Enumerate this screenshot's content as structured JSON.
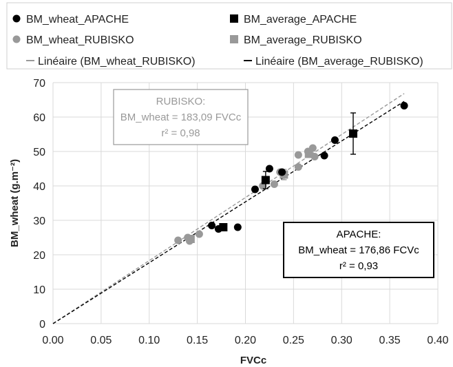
{
  "chart_data": {
    "type": "scatter",
    "xlabel": "FVCc",
    "ylabel": "BM_wheat (g.m⁻²)",
    "xlim": [
      0,
      0.4
    ],
    "ylim": [
      0,
      70
    ],
    "x_ticks": [
      "0.00",
      "0.05",
      "0.10",
      "0.15",
      "0.20",
      "0.25",
      "0.30",
      "0.35",
      "0.40"
    ],
    "y_ticks": [
      "0",
      "10",
      "20",
      "30",
      "40",
      "50",
      "60",
      "70"
    ],
    "grid": true,
    "legend_placement": "top",
    "series": [
      {
        "name": "BM_wheat_APACHE",
        "marker": "circle",
        "color": "#000000",
        "points": [
          [
            0.165,
            28.5
          ],
          [
            0.172,
            27.5
          ],
          [
            0.192,
            28.0
          ],
          [
            0.21,
            39.0
          ],
          [
            0.225,
            45.0
          ],
          [
            0.238,
            44.0
          ],
          [
            0.282,
            48.8
          ],
          [
            0.293,
            53.3
          ],
          [
            0.365,
            63.3
          ]
        ]
      },
      {
        "name": "BM_average_APACHE",
        "marker": "square",
        "color": "#000000",
        "points": [
          [
            0.177,
            28.0
          ],
          [
            0.221,
            41.7
          ],
          [
            0.312,
            55.2
          ]
        ],
        "error": [
          0,
          2.5,
          6.0
        ]
      },
      {
        "name": "BM_wheat_RUBISKO",
        "marker": "circle",
        "color": "#999999",
        "points": [
          [
            0.13,
            24.2
          ],
          [
            0.14,
            25.0
          ],
          [
            0.142,
            24.0
          ],
          [
            0.152,
            26.0
          ],
          [
            0.218,
            40.0
          ],
          [
            0.23,
            40.5
          ],
          [
            0.236,
            44.0
          ],
          [
            0.255,
            45.5
          ],
          [
            0.255,
            49.0
          ],
          [
            0.265,
            50.0
          ],
          [
            0.27,
            51.0
          ],
          [
            0.272,
            48.5
          ]
        ]
      },
      {
        "name": "BM_average_RUBISKO",
        "marker": "square",
        "color": "#999999",
        "points": [
          [
            0.143,
            24.6
          ],
          [
            0.24,
            43.3
          ],
          [
            0.266,
            49.3
          ]
        ],
        "error": [
          0.8,
          1.5,
          1.0
        ]
      },
      {
        "name": "Linéaire (BM_wheat_RUBISKO)",
        "type": "line",
        "dash": "dashed",
        "color": "#999999",
        "slope": 183.09
      },
      {
        "name": "Linéaire (BM_average_RUBISKO)",
        "type": "line",
        "dash": "dashed",
        "color": "#000000",
        "slope": 176.86,
        "x_end": 0.365
      }
    ],
    "annotations": {
      "rubisko": {
        "title": "RUBISKO:",
        "equation": "BM_wheat = 183,09 FVCc",
        "r2": "r² = 0,98",
        "color": "#999999"
      },
      "apache": {
        "title": "APACHE:",
        "equation": "BM_wheat = 176,86 FCVc",
        "r2": "r² = 0,93",
        "color": "#000000"
      }
    }
  }
}
